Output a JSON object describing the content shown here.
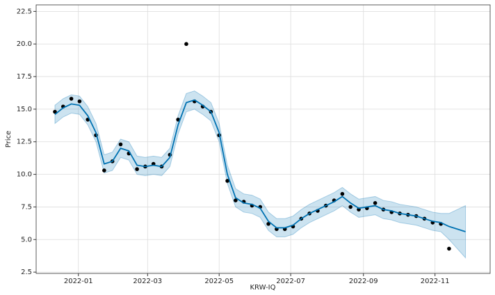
{
  "chart_data": {
    "type": "line",
    "x_label": "KRW-IQ",
    "y_label": "Price",
    "x": [
      "2021-12-12",
      "2021-12-19",
      "2021-12-26",
      "2022-01-02",
      "2022-01-09",
      "2022-01-16",
      "2022-01-23",
      "2022-01-30",
      "2022-02-06",
      "2022-02-13",
      "2022-02-20",
      "2022-02-27",
      "2022-03-06",
      "2022-03-13",
      "2022-03-20",
      "2022-03-27",
      "2022-04-03",
      "2022-04-10",
      "2022-04-17",
      "2022-04-24",
      "2022-05-01",
      "2022-05-08",
      "2022-05-15",
      "2022-05-22",
      "2022-05-29",
      "2022-06-05",
      "2022-06-12",
      "2022-06-19",
      "2022-06-26",
      "2022-07-03",
      "2022-07-10",
      "2022-07-17",
      "2022-07-24",
      "2022-07-31",
      "2022-08-07",
      "2022-08-14",
      "2022-08-21",
      "2022-08-28",
      "2022-09-04",
      "2022-09-11",
      "2022-09-18",
      "2022-09-25",
      "2022-10-02",
      "2022-10-09",
      "2022-10-16",
      "2022-10-23",
      "2022-10-30",
      "2022-11-06",
      "2022-11-13",
      "2022-11-20",
      "2022-11-27"
    ],
    "observed": {
      "color": "#000000",
      "values": [
        14.8,
        15.2,
        15.8,
        15.6,
        14.2,
        13.0,
        10.3,
        11.0,
        12.3,
        11.6,
        10.4,
        10.6,
        10.8,
        10.6,
        11.5,
        14.2,
        20.0,
        15.6,
        15.2,
        14.8,
        13.0,
        9.5,
        8.0,
        7.9,
        7.6,
        7.5,
        6.2,
        5.8,
        5.8,
        6.0,
        6.6,
        7.0,
        7.2,
        7.6,
        8.0,
        8.5,
        7.5,
        7.3,
        7.4,
        7.8,
        7.3,
        7.1,
        7.0,
        6.9,
        6.8,
        6.6,
        6.3,
        6.2,
        4.3,
        null,
        null
      ]
    },
    "forecast": {
      "color": "#0072b2",
      "values": [
        14.6,
        15.1,
        15.4,
        15.3,
        14.5,
        13.2,
        10.8,
        11.0,
        12.0,
        11.8,
        10.7,
        10.6,
        10.7,
        10.6,
        11.3,
        13.8,
        15.5,
        15.7,
        15.3,
        14.8,
        13.2,
        10.0,
        8.2,
        7.8,
        7.7,
        7.4,
        6.4,
        5.9,
        5.9,
        6.1,
        6.6,
        7.0,
        7.3,
        7.6,
        7.9,
        8.3,
        7.8,
        7.4,
        7.5,
        7.6,
        7.3,
        7.2,
        7.0,
        6.9,
        6.8,
        6.6,
        6.4,
        6.3,
        6.0,
        5.8,
        5.6
      ]
    },
    "band": {
      "color": "#0072b2",
      "lower": [
        13.9,
        14.4,
        14.7,
        14.6,
        13.8,
        12.5,
        10.1,
        10.3,
        11.3,
        11.1,
        10.0,
        9.9,
        10.0,
        9.9,
        10.6,
        13.1,
        14.8,
        15.0,
        14.6,
        14.1,
        12.5,
        9.3,
        7.5,
        7.1,
        7.0,
        6.7,
        5.7,
        5.2,
        5.2,
        5.4,
        5.9,
        6.3,
        6.6,
        6.9,
        7.2,
        7.6,
        7.1,
        6.7,
        6.8,
        6.9,
        6.6,
        6.5,
        6.3,
        6.2,
        6.1,
        5.9,
        5.7,
        5.6,
        5.0,
        4.3,
        3.6
      ],
      "upper": [
        15.3,
        15.8,
        16.1,
        16.0,
        15.2,
        13.9,
        11.5,
        11.7,
        12.7,
        12.5,
        11.4,
        11.3,
        11.4,
        11.3,
        12.0,
        14.5,
        16.2,
        16.4,
        16.0,
        15.5,
        13.9,
        10.7,
        8.9,
        8.5,
        8.4,
        8.1,
        7.1,
        6.6,
        6.6,
        6.8,
        7.3,
        7.7,
        8.0,
        8.3,
        8.6,
        9.0,
        8.5,
        8.1,
        8.2,
        8.3,
        8.0,
        7.9,
        7.7,
        7.6,
        7.5,
        7.3,
        7.1,
        7.0,
        7.0,
        7.3,
        7.6
      ]
    },
    "xlim": [
      "2021-11-26",
      "2022-12-18"
    ],
    "xticks": [
      "2022-01",
      "2022-03",
      "2022-05",
      "2022-07",
      "2022-09",
      "2022-11"
    ],
    "ylim": [
      2.4,
      23.0
    ],
    "yticks": [
      {
        "value": 2.5,
        "label": "2.5"
      },
      {
        "value": 5,
        "label": "5.0"
      },
      {
        "value": 7.5,
        "label": "7.5"
      },
      {
        "value": 10,
        "label": "10.0"
      },
      {
        "value": 12.5,
        "label": "12.5"
      },
      {
        "value": 15,
        "label": "15.0"
      },
      {
        "value": 17.5,
        "label": "17.5"
      },
      {
        "value": 20,
        "label": "20.0"
      },
      {
        "value": 22.5,
        "label": "22.5"
      }
    ],
    "grid": true
  }
}
